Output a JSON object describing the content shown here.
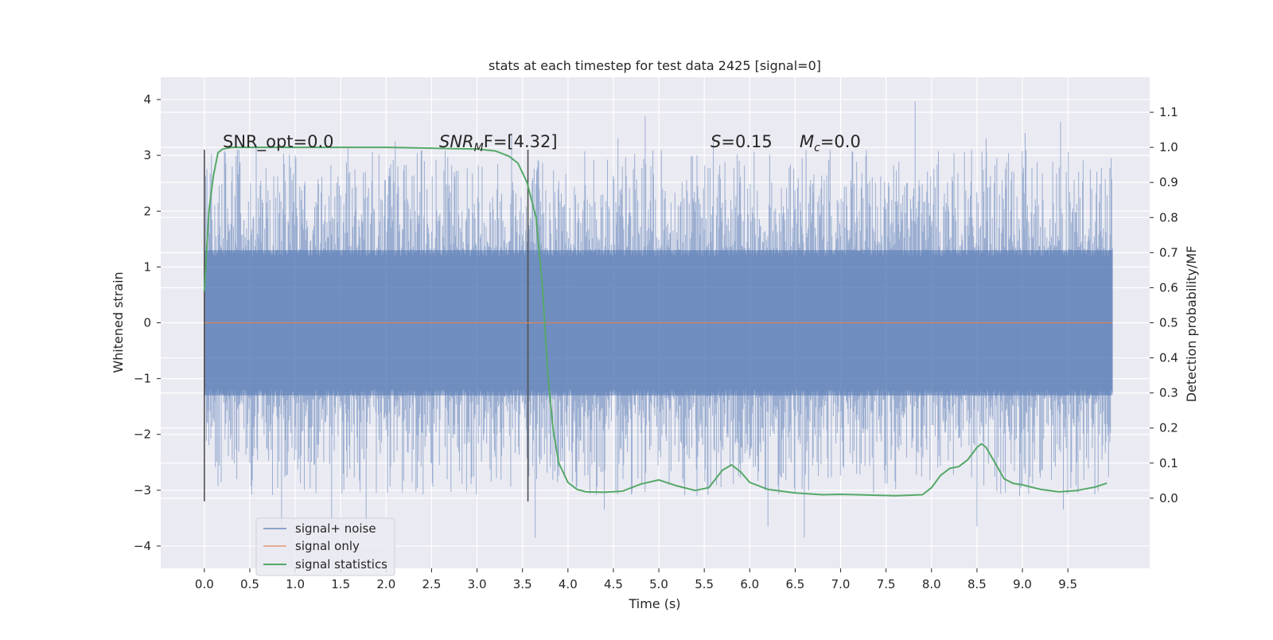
{
  "chart_data": {
    "type": "line",
    "title": "stats at each timestep for test data 2425 [signal=0]",
    "xlabel": "Time (s)",
    "ylabel": "Whitened strain",
    "y2label": "Detection probability/MF",
    "xlim": [
      -0.48,
      10.4
    ],
    "ylim": [
      -4.4,
      4.4
    ],
    "y2lim": [
      -0.2,
      1.2
    ],
    "xticks": [
      0.0,
      0.5,
      1.0,
      1.5,
      2.0,
      2.5,
      3.0,
      3.5,
      4.0,
      4.5,
      5.0,
      5.5,
      6.0,
      6.5,
      7.0,
      7.5,
      8.0,
      8.5,
      9.0,
      9.5
    ],
    "xtick_labels": [
      "0.0",
      "0.5",
      "1.0",
      "1.5",
      "2.0",
      "2.5",
      "3.0",
      "3.5",
      "4.0",
      "4.5",
      "5.0",
      "5.5",
      "6.0",
      "6.5",
      "7.0",
      "7.5",
      "8.0",
      "8.5",
      "9.0",
      "9.5"
    ],
    "yticks": [
      4,
      3,
      2,
      1,
      0,
      -1,
      -2,
      -3,
      -4
    ],
    "ytick_labels": [
      "4",
      "3",
      "2",
      "1",
      "0",
      "−1",
      "−2",
      "−3",
      "−4"
    ],
    "y2ticks": [
      1.1,
      1.0,
      0.9,
      0.8,
      0.7,
      0.6,
      0.5,
      0.4,
      0.3,
      0.2,
      0.1,
      0.0
    ],
    "y2tick_labels": [
      "1.1",
      "1.0",
      "0.9",
      "0.8",
      "0.7",
      "0.6",
      "0.5",
      "0.4",
      "0.3",
      "0.2",
      "0.1",
      "0.0"
    ],
    "grid": true,
    "legend_position": "lower-left",
    "annotations": {
      "snr_opt": "SNR_opt=0.0",
      "snr_mf_prefix": "SNR",
      "snr_mf_sub": "M",
      "snr_mf_rest": "F=[4.32]",
      "s_italic": "S",
      "s_value": "=0.15",
      "mc_italic": "M",
      "mc_sub": "c",
      "mc_value": "=0.0"
    },
    "vlines": [
      0.0,
      3.56
    ],
    "vline_range": [
      -3.2,
      3.1
    ],
    "series": [
      {
        "name": "signal+ noise",
        "color": "#4c72b0",
        "axis": "left",
        "x_range": [
          0.0,
          9.99
        ],
        "band_ylim": [
          -1.3,
          1.3
        ],
        "spike_peaks": [
          {
            "x": 0.23,
            "y": 3.05
          },
          {
            "x": 0.38,
            "y": 3.1
          },
          {
            "x": 0.57,
            "y": 3.2
          },
          {
            "x": 1.0,
            "y": 3.0
          },
          {
            "x": 1.58,
            "y": 3.15
          },
          {
            "x": 2.1,
            "y": 3.25
          },
          {
            "x": 3.38,
            "y": 3.4
          },
          {
            "x": 4.55,
            "y": 3.3
          },
          {
            "x": 4.85,
            "y": 3.7
          },
          {
            "x": 5.6,
            "y": 3.25
          },
          {
            "x": 7.82,
            "y": 3.97
          },
          {
            "x": 8.6,
            "y": 3.3
          },
          {
            "x": 9.03,
            "y": 3.4
          },
          {
            "x": 9.42,
            "y": 3.6
          },
          {
            "x": 0.85,
            "y": -3.7
          },
          {
            "x": 1.4,
            "y": -3.8
          },
          {
            "x": 1.78,
            "y": -3.6
          },
          {
            "x": 3.64,
            "y": -3.85
          },
          {
            "x": 4.4,
            "y": -3.35
          },
          {
            "x": 6.2,
            "y": -3.65
          },
          {
            "x": 6.6,
            "y": -3.85
          },
          {
            "x": 8.5,
            "y": -3.65
          },
          {
            "x": 9.45,
            "y": -3.35
          }
        ]
      },
      {
        "name": "signal only",
        "color": "#dd8452",
        "axis": "left",
        "x": [
          0.0,
          9.99
        ],
        "y": [
          0.0,
          0.0
        ]
      },
      {
        "name": "signal statistics",
        "color": "#55a868",
        "axis": "right",
        "x": [
          0.0,
          0.05,
          0.1,
          0.15,
          0.2,
          0.3,
          0.5,
          1.0,
          2.0,
          3.0,
          3.2,
          3.35,
          3.45,
          3.55,
          3.65,
          3.72,
          3.78,
          3.84,
          3.9,
          4.0,
          4.1,
          4.2,
          4.4,
          4.6,
          4.8,
          5.0,
          5.2,
          5.4,
          5.55,
          5.7,
          5.8,
          5.9,
          6.0,
          6.2,
          6.5,
          6.8,
          7.0,
          7.3,
          7.6,
          7.9,
          8.0,
          8.1,
          8.2,
          8.3,
          8.4,
          8.5,
          8.55,
          8.6,
          8.7,
          8.8,
          8.9,
          9.0,
          9.2,
          9.4,
          9.6,
          9.8,
          9.93
        ],
        "y": [
          0.59,
          0.82,
          0.92,
          0.985,
          0.995,
          1.0,
          1.0,
          1.0,
          1.0,
          0.995,
          0.99,
          0.975,
          0.955,
          0.9,
          0.8,
          0.6,
          0.35,
          0.19,
          0.1,
          0.045,
          0.025,
          0.018,
          0.017,
          0.02,
          0.04,
          0.052,
          0.035,
          0.022,
          0.03,
          0.08,
          0.095,
          0.075,
          0.045,
          0.025,
          0.015,
          0.01,
          0.011,
          0.009,
          0.007,
          0.01,
          0.03,
          0.065,
          0.085,
          0.09,
          0.11,
          0.145,
          0.155,
          0.145,
          0.1,
          0.055,
          0.042,
          0.038,
          0.025,
          0.018,
          0.022,
          0.032,
          0.043
        ]
      }
    ]
  }
}
